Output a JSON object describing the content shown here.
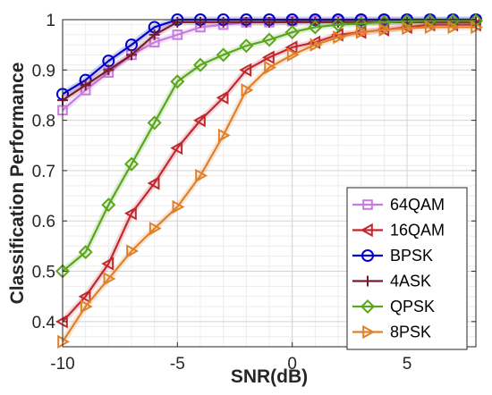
{
  "chart_data": {
    "type": "line",
    "xlabel": "SNR(dB)",
    "ylabel": "Classification Performance",
    "xlim": [
      -10,
      8
    ],
    "ylim": [
      0.35,
      1.0
    ],
    "x_ticks": [
      -10,
      -5,
      0,
      5
    ],
    "y_ticks": [
      0.4,
      0.5,
      0.6,
      0.7,
      0.8,
      0.9,
      1.0
    ],
    "y_tick_labels": [
      "0.4",
      "0.5",
      "0.6",
      "0.7",
      "0.8",
      "0.9",
      "1"
    ],
    "grid": true,
    "minor_grid": true,
    "legend_position": "bottom-right",
    "x": [
      -10,
      -9,
      -8,
      -7,
      -6,
      -5,
      -4,
      -3,
      -2,
      -1,
      0,
      1,
      2,
      3,
      4,
      5,
      6,
      7,
      8
    ],
    "series": [
      {
        "name": "64QAM",
        "color": "#c77be0",
        "marker": "square",
        "values": [
          0.82,
          0.86,
          0.895,
          0.93,
          0.955,
          0.97,
          0.985,
          0.99,
          0.995,
          0.995,
          0.997,
          0.998,
          0.998,
          0.999,
          0.999,
          0.999,
          0.999,
          0.999,
          0.999
        ]
      },
      {
        "name": "16QAM",
        "color": "#c1272d",
        "marker": "triangle-left",
        "values": [
          0.4,
          0.45,
          0.515,
          0.615,
          0.675,
          0.745,
          0.8,
          0.845,
          0.9,
          0.925,
          0.945,
          0.955,
          0.97,
          0.975,
          0.98,
          0.985,
          0.99,
          0.99,
          0.99
        ]
      },
      {
        "name": "BPSK",
        "color": "#0000cc",
        "marker": "circle",
        "values": [
          0.852,
          0.88,
          0.918,
          0.95,
          0.985,
          1.0,
          1.0,
          1.0,
          1.0,
          1.0,
          1.0,
          1.0,
          1.0,
          1.0,
          1.0,
          1.0,
          1.0,
          1.0,
          1.0
        ]
      },
      {
        "name": "4ASK",
        "color": "#7a1a2e",
        "marker": "plus",
        "values": [
          0.84,
          0.87,
          0.9,
          0.93,
          0.97,
          0.995,
          0.995,
          0.995,
          0.995,
          0.995,
          0.995,
          0.995,
          0.995,
          0.995,
          0.995,
          0.995,
          0.995,
          0.995,
          0.995
        ]
      },
      {
        "name": "QPSK",
        "color": "#5aa61a",
        "marker": "diamond",
        "values": [
          0.5,
          0.538,
          0.632,
          0.713,
          0.795,
          0.877,
          0.91,
          0.93,
          0.948,
          0.96,
          0.975,
          0.985,
          0.99,
          0.992,
          0.995,
          0.997,
          0.998,
          0.998,
          0.998
        ]
      },
      {
        "name": "8PSK",
        "color": "#e0802a",
        "marker": "triangle-right",
        "values": [
          0.36,
          0.43,
          0.485,
          0.54,
          0.585,
          0.628,
          0.69,
          0.77,
          0.86,
          0.905,
          0.93,
          0.95,
          0.965,
          0.975,
          0.98,
          0.983,
          0.985,
          0.985,
          0.985
        ]
      }
    ]
  }
}
